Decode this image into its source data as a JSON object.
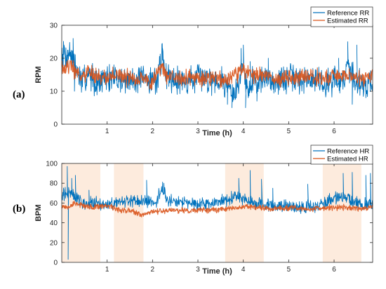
{
  "panels": {
    "a": {
      "label": "(a)"
    },
    "b": {
      "label": "(b)"
    }
  },
  "colors": {
    "reference": "#0072BD",
    "estimated": "#D95319",
    "shade": "#FDEBDD",
    "axis": "#262626"
  },
  "chart_data": [
    {
      "type": "line",
      "title": "",
      "xlabel": "Time (h)",
      "ylabel": "RPM",
      "xlim": [
        0,
        6.85
      ],
      "ylim": [
        0,
        30
      ],
      "xticks": [
        "1",
        "2",
        "3",
        "4",
        "5",
        "6"
      ],
      "yticks": [
        "0",
        "10",
        "20",
        "30"
      ],
      "legend_position": "top-right",
      "series": [
        {
          "name": "Reference RR",
          "color": "#0072BD",
          "x": [
            0.0,
            0.1,
            0.2,
            0.3,
            0.4,
            0.5,
            0.6,
            0.7,
            0.8,
            0.9,
            1.0,
            1.2,
            1.4,
            1.6,
            1.8,
            2.0,
            2.1,
            2.2,
            2.3,
            2.5,
            2.7,
            3.0,
            3.3,
            3.6,
            3.7,
            3.8,
            3.9,
            4.0,
            4.1,
            4.2,
            4.3,
            4.5,
            4.8,
            5.0,
            5.3,
            5.6,
            5.8,
            6.0,
            6.2,
            6.3,
            6.5,
            6.7,
            6.85
          ],
          "values": [
            22,
            21,
            22,
            17,
            14,
            13,
            15,
            14,
            13,
            13,
            14,
            14,
            13,
            14,
            13,
            14,
            13,
            21,
            15,
            14,
            13,
            14,
            14,
            13,
            11,
            8,
            13,
            19,
            9,
            14,
            13,
            14,
            13,
            14,
            13,
            14,
            12,
            14,
            13,
            18,
            13,
            12,
            13
          ],
          "peaks": [
            [
              0.05,
              24
            ],
            [
              0.25,
              26
            ],
            [
              0.28,
              10
            ],
            [
              0.5,
              18
            ],
            [
              2.22,
              23
            ],
            [
              3.65,
              6
            ],
            [
              3.75,
              5
            ],
            [
              3.95,
              23
            ],
            [
              4.0,
              24
            ],
            [
              4.05,
              5
            ],
            [
              4.15,
              19
            ],
            [
              4.3,
              7
            ],
            [
              4.55,
              20
            ],
            [
              6.1,
              20
            ],
            [
              6.3,
              25
            ],
            [
              6.4,
              6
            ],
            [
              6.5,
              24
            ],
            [
              6.7,
              8
            ]
          ]
        },
        {
          "name": "Estimated RR",
          "color": "#D95319",
          "x": [
            0.0,
            0.1,
            0.2,
            0.3,
            0.4,
            0.5,
            0.6,
            0.8,
            1.0,
            1.2,
            1.4,
            1.6,
            1.8,
            2.0,
            2.2,
            2.3,
            2.5,
            2.8,
            3.0,
            3.3,
            3.6,
            3.8,
            4.0,
            4.2,
            4.4,
            4.7,
            5.0,
            5.3,
            5.6,
            5.8,
            6.0,
            6.3,
            6.5,
            6.7,
            6.85
          ],
          "values": [
            18,
            17,
            18,
            16,
            15,
            14,
            16,
            14,
            14,
            15,
            14,
            14,
            14,
            13,
            18,
            15,
            14,
            14,
            14,
            14,
            13,
            15,
            16,
            15,
            15,
            14,
            14,
            14,
            14,
            14,
            15,
            15,
            14,
            14,
            15
          ]
        }
      ]
    },
    {
      "type": "line",
      "title": "",
      "xlabel": "Time (h)",
      "ylabel": "BPM",
      "xlim": [
        0,
        6.85
      ],
      "ylim": [
        0,
        100
      ],
      "xticks": [
        "1",
        "2",
        "3",
        "4",
        "5",
        "6"
      ],
      "yticks": [
        "0",
        "20",
        "40",
        "60",
        "80",
        "100"
      ],
      "legend_position": "top-right",
      "shaded_intervals": [
        [
          0.0,
          0.85
        ],
        [
          1.15,
          1.8
        ],
        [
          3.6,
          4.45
        ],
        [
          5.75,
          6.6
        ]
      ],
      "series": [
        {
          "name": "Reference HR",
          "color": "#0072BD",
          "x": [
            0.0,
            0.1,
            0.2,
            0.3,
            0.4,
            0.5,
            0.6,
            0.8,
            1.0,
            1.2,
            1.4,
            1.6,
            1.8,
            2.0,
            2.1,
            2.2,
            2.3,
            2.4,
            2.6,
            2.8,
            3.0,
            3.3,
            3.6,
            3.8,
            4.0,
            4.2,
            4.4,
            4.6,
            4.8,
            5.0,
            5.3,
            5.6,
            5.8,
            6.0,
            6.2,
            6.4,
            6.6,
            6.85
          ],
          "values": [
            70,
            68,
            72,
            66,
            62,
            61,
            60,
            59,
            58,
            59,
            61,
            62,
            62,
            60,
            62,
            76,
            66,
            62,
            60,
            60,
            59,
            59,
            62,
            68,
            65,
            60,
            59,
            57,
            57,
            57,
            56,
            57,
            60,
            65,
            67,
            62,
            60,
            58
          ],
          "peaks": [
            [
              0.12,
              97
            ],
            [
              0.14,
              3
            ],
            [
              0.22,
              85
            ],
            [
              0.3,
              88
            ],
            [
              0.6,
              73
            ],
            [
              1.87,
              83
            ],
            [
              2.25,
              80
            ],
            [
              3.9,
              85
            ],
            [
              4.15,
              93
            ],
            [
              4.4,
              84
            ],
            [
              4.65,
              75
            ],
            [
              5.42,
              79
            ],
            [
              6.2,
              90
            ],
            [
              6.4,
              91
            ],
            [
              6.7,
              88
            ],
            [
              6.8,
              90
            ]
          ]
        },
        {
          "name": "Estimated HR",
          "color": "#D95319",
          "x": [
            0.0,
            0.1,
            0.3,
            0.5,
            0.7,
            0.9,
            1.1,
            1.3,
            1.5,
            1.7,
            1.8,
            2.0,
            2.2,
            2.5,
            2.8,
            3.0,
            3.3,
            3.6,
            3.9,
            4.1,
            4.4,
            4.7,
            5.0,
            5.3,
            5.6,
            5.9,
            6.2,
            6.5,
            6.85
          ],
          "values": [
            57,
            56,
            60,
            57,
            55,
            57,
            56,
            53,
            52,
            49,
            48,
            52,
            52,
            53,
            52,
            53,
            53,
            54,
            56,
            57,
            55,
            54,
            55,
            54,
            54,
            55,
            56,
            54,
            56
          ]
        }
      ]
    }
  ]
}
